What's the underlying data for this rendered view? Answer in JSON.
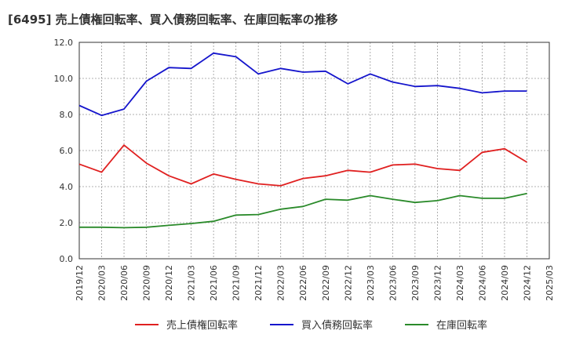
{
  "chart_data": {
    "type": "line",
    "title": "[6495]  売上債権回転率、買入債務回転率、在庫回転率の推移",
    "xlabel": "",
    "ylabel": "",
    "ylim": [
      0,
      12
    ],
    "yticks": [
      "0.0",
      "2.0",
      "4.0",
      "6.0",
      "8.0",
      "10.0",
      "12.0"
    ],
    "grid": true,
    "legend_position": "bottom",
    "x_tick_labels": [
      "2019/12",
      "2020/03",
      "2020/06",
      "2020/09",
      "2020/12",
      "2021/03",
      "2021/06",
      "2021/09",
      "2021/12",
      "2022/03",
      "2022/06",
      "2022/09",
      "2022/12",
      "2023/03",
      "2023/06",
      "2023/09",
      "2023/12",
      "2024/03",
      "2024/06",
      "2024/09",
      "2024/12",
      "2025/03"
    ],
    "categories": [
      "2019/12",
      "2020/03",
      "2020/06",
      "2020/09",
      "2020/12",
      "2021/03",
      "2021/06",
      "2021/09",
      "2021/12",
      "2022/03",
      "2022/06",
      "2022/09",
      "2022/12",
      "2023/03",
      "2023/06",
      "2023/09",
      "2023/12",
      "2024/03",
      "2024/06",
      "2024/09",
      "2024/12"
    ],
    "series": [
      {
        "name": "売上債権回転率",
        "color": "#e02020",
        "values": [
          5.25,
          4.8,
          6.3,
          5.3,
          4.6,
          4.15,
          4.7,
          4.4,
          4.15,
          4.05,
          4.45,
          4.6,
          4.9,
          4.8,
          5.2,
          5.25,
          5.0,
          4.9,
          5.9,
          6.1,
          5.35
        ]
      },
      {
        "name": "買入債務回転率",
        "color": "#1515cc",
        "values": [
          8.5,
          7.95,
          8.3,
          9.85,
          10.6,
          10.55,
          11.4,
          11.2,
          10.25,
          10.55,
          10.35,
          10.4,
          9.7,
          10.25,
          9.8,
          9.55,
          9.6,
          9.45,
          9.2,
          9.3,
          9.3
        ]
      },
      {
        "name": "在庫回転率",
        "color": "#2a8a2a",
        "values": [
          1.75,
          1.75,
          1.72,
          1.75,
          1.85,
          1.95,
          2.08,
          2.42,
          2.45,
          2.75,
          2.9,
          3.3,
          3.25,
          3.5,
          3.3,
          3.12,
          3.22,
          3.5,
          3.35,
          3.35,
          3.62
        ]
      }
    ]
  }
}
